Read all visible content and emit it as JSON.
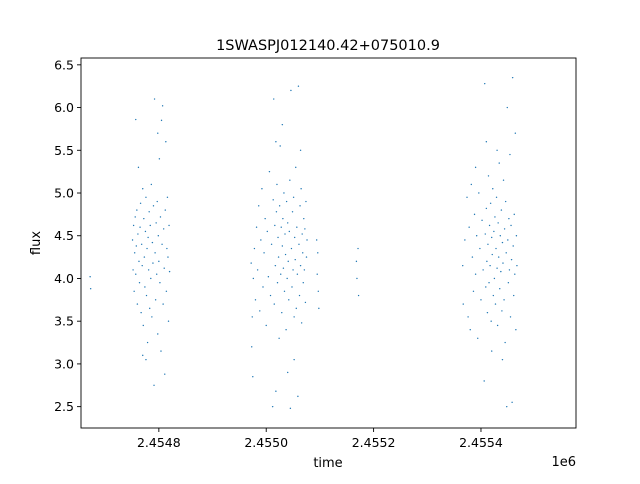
{
  "chart_data": {
    "type": "scatter",
    "title": "1SWASPJ012140.42+075010.9",
    "xlabel": "time",
    "ylabel": "flux",
    "x_offset_label": "1e6",
    "xlim": [
      2454655,
      2455577
    ],
    "ylim": [
      2.25,
      6.58
    ],
    "x_ticks": [
      {
        "value": 2454800,
        "label": "2.4548"
      },
      {
        "value": 2455000,
        "label": "2.4550"
      },
      {
        "value": 2455200,
        "label": "2.4552"
      },
      {
        "value": 2455400,
        "label": "2.4554"
      }
    ],
    "y_ticks": [
      {
        "value": 2.5,
        "label": "2.5"
      },
      {
        "value": 3.0,
        "label": "3.0"
      },
      {
        "value": 3.5,
        "label": "3.5"
      },
      {
        "value": 4.0,
        "label": "4.0"
      },
      {
        "value": 4.5,
        "label": "4.5"
      },
      {
        "value": 5.0,
        "label": "5.0"
      },
      {
        "value": 5.5,
        "label": "5.5"
      },
      {
        "value": 6.0,
        "label": "6.0"
      },
      {
        "value": 6.5,
        "label": "6.5"
      }
    ],
    "grid": false,
    "marker_color": "#1f77b4",
    "series": [
      {
        "points": [
          [
            2454672,
            4.02
          ],
          [
            2454673,
            3.88
          ],
          [
            2454751,
            4.45
          ],
          [
            2454752,
            4.1
          ],
          [
            2454753,
            4.62
          ],
          [
            2454754,
            3.85
          ],
          [
            2454755,
            4.3
          ],
          [
            2454756,
            4.72
          ],
          [
            2454757,
            4.05
          ],
          [
            2454758,
            4.38
          ],
          [
            2454759,
            4.8
          ],
          [
            2454760,
            3.7
          ],
          [
            2454761,
            4.52
          ],
          [
            2454762,
            5.3
          ],
          [
            2454763,
            4.2
          ],
          [
            2454764,
            3.95
          ],
          [
            2454765,
            4.6
          ],
          [
            2454766,
            4.88
          ],
          [
            2454767,
            3.6
          ],
          [
            2454768,
            4.4
          ],
          [
            2454769,
            4.15
          ],
          [
            2454770,
            5.05
          ],
          [
            2454771,
            3.45
          ],
          [
            2454772,
            4.7
          ],
          [
            2454773,
            4.25
          ],
          [
            2454774,
            3.9
          ],
          [
            2454775,
            4.55
          ],
          [
            2454776,
            4.95
          ],
          [
            2454777,
            3.8
          ],
          [
            2454778,
            4.35
          ],
          [
            2454779,
            3.25
          ],
          [
            2454780,
            4.48
          ],
          [
            2454781,
            4.1
          ],
          [
            2454782,
            4.78
          ],
          [
            2454783,
            3.65
          ],
          [
            2454784,
            4.62
          ],
          [
            2454785,
            4.0
          ],
          [
            2454786,
            5.1
          ],
          [
            2454787,
            3.55
          ],
          [
            2454788,
            4.42
          ],
          [
            2454789,
            4.18
          ],
          [
            2454790,
            4.85
          ],
          [
            2454791,
            2.75
          ],
          [
            2454792,
            6.1
          ],
          [
            2454793,
            4.3
          ],
          [
            2454794,
            3.75
          ],
          [
            2454795,
            4.65
          ],
          [
            2454796,
            4.05
          ],
          [
            2454797,
            4.9
          ],
          [
            2454798,
            3.35
          ],
          [
            2454799,
            4.5
          ],
          [
            2454800,
            4.2
          ],
          [
            2454801,
            5.4
          ],
          [
            2454802,
            3.95
          ],
          [
            2454803,
            4.72
          ],
          [
            2454804,
            3.15
          ],
          [
            2454805,
            5.85
          ],
          [
            2454806,
            4.4
          ],
          [
            2454807,
            6.02
          ],
          [
            2454808,
            3.7
          ],
          [
            2454809,
            4.58
          ],
          [
            2454810,
            4.12
          ],
          [
            2454811,
            2.88
          ],
          [
            2454812,
            4.8
          ],
          [
            2454813,
            5.6
          ],
          [
            2454814,
            3.85
          ],
          [
            2454815,
            4.35
          ],
          [
            2454816,
            4.95
          ],
          [
            2454817,
            4.25
          ],
          [
            2454818,
            3.5
          ],
          [
            2454819,
            4.62
          ],
          [
            2454820,
            4.08
          ],
          [
            2454757,
            5.86
          ],
          [
            2454770,
            3.1
          ],
          [
            2454776,
            3.05
          ],
          [
            2454798,
            5.7
          ],
          [
            2454972,
            4.18
          ],
          [
            2454973,
            3.2
          ],
          [
            2454974,
            3.55
          ],
          [
            2454975,
            2.85
          ],
          [
            2454976,
            4.0
          ],
          [
            2454978,
            4.35
          ],
          [
            2454980,
            3.75
          ],
          [
            2454982,
            4.6
          ],
          [
            2454984,
            4.1
          ],
          [
            2454986,
            4.85
          ],
          [
            2454988,
            3.62
          ],
          [
            2454990,
            4.45
          ],
          [
            2454992,
            5.05
          ],
          [
            2454994,
            3.9
          ],
          [
            2454996,
            4.3
          ],
          [
            2454998,
            4.7
          ],
          [
            2455000,
            3.45
          ],
          [
            2455002,
            4.55
          ],
          [
            2455004,
            4.02
          ],
          [
            2455006,
            5.25
          ],
          [
            2455008,
            3.8
          ],
          [
            2455010,
            4.4
          ],
          [
            2455012,
            2.5
          ],
          [
            2455013,
            4.92
          ],
          [
            2455014,
            6.1
          ],
          [
            2455015,
            3.7
          ],
          [
            2455016,
            4.62
          ],
          [
            2455017,
            4.15
          ],
          [
            2455018,
            2.68
          ],
          [
            2455019,
            4.78
          ],
          [
            2455020,
            5.1
          ],
          [
            2455021,
            3.95
          ],
          [
            2455022,
            4.48
          ],
          [
            2455023,
            4.25
          ],
          [
            2455024,
            3.3
          ],
          [
            2455025,
            4.85
          ],
          [
            2455026,
            5.55
          ],
          [
            2455027,
            4.05
          ],
          [
            2455028,
            4.6
          ],
          [
            2455029,
            3.6
          ],
          [
            2455030,
            4.38
          ],
          [
            2455031,
            4.7
          ],
          [
            2455032,
            4.12
          ],
          [
            2455033,
            5.0
          ],
          [
            2455034,
            3.85
          ],
          [
            2455035,
            4.52
          ],
          [
            2455036,
            4.28
          ],
          [
            2455037,
            3.4
          ],
          [
            2455038,
            4.9
          ],
          [
            2455039,
            4.0
          ],
          [
            2455040,
            4.65
          ],
          [
            2455041,
            4.2
          ],
          [
            2455042,
            3.75
          ],
          [
            2455043,
            4.55
          ],
          [
            2455044,
            5.15
          ],
          [
            2455045,
            2.48
          ],
          [
            2455046,
            6.2
          ],
          [
            2455047,
            4.35
          ],
          [
            2455048,
            3.9
          ],
          [
            2455049,
            4.78
          ],
          [
            2455050,
            4.1
          ],
          [
            2455051,
            4.95
          ],
          [
            2455052,
            3.55
          ],
          [
            2455053,
            4.48
          ],
          [
            2455054,
            4.22
          ],
          [
            2455055,
            5.3
          ],
          [
            2455056,
            3.65
          ],
          [
            2455057,
            4.6
          ],
          [
            2455058,
            4.05
          ],
          [
            2455059,
            2.62
          ],
          [
            2455060,
            6.25
          ],
          [
            2455061,
            4.4
          ],
          [
            2455062,
            3.8
          ],
          [
            2455063,
            4.85
          ],
          [
            2455064,
            4.15
          ],
          [
            2455065,
            5.05
          ],
          [
            2455066,
            3.48
          ],
          [
            2455067,
            4.52
          ],
          [
            2455068,
            4.3
          ],
          [
            2455069,
            3.95
          ],
          [
            2455070,
            4.7
          ],
          [
            2455071,
            4.1
          ],
          [
            2455072,
            4.58
          ],
          [
            2455073,
            3.72
          ],
          [
            2455074,
            4.9
          ],
          [
            2455075,
            4.25
          ],
          [
            2455076,
            4.45
          ],
          [
            2455018,
            5.6
          ],
          [
            2455030,
            5.8
          ],
          [
            2455040,
            2.9
          ],
          [
            2455064,
            5.5
          ],
          [
            2455052,
            3.05
          ],
          [
            2455094,
            4.45
          ],
          [
            2455095,
            4.05
          ],
          [
            2455096,
            4.3
          ],
          [
            2455097,
            3.85
          ],
          [
            2455098,
            3.65
          ],
          [
            2455168,
            4.2
          ],
          [
            2455169,
            4.0
          ],
          [
            2455171,
            4.35
          ],
          [
            2455172,
            3.8
          ],
          [
            2455366,
            4.15
          ],
          [
            2455367,
            3.7
          ],
          [
            2455370,
            4.45
          ],
          [
            2455374,
            4.95
          ],
          [
            2455376,
            3.55
          ],
          [
            2455378,
            4.6
          ],
          [
            2455380,
            3.4
          ],
          [
            2455382,
            5.1
          ],
          [
            2455384,
            4.25
          ],
          [
            2455386,
            3.85
          ],
          [
            2455388,
            4.75
          ],
          [
            2455390,
            4.05
          ],
          [
            2455392,
            4.5
          ],
          [
            2455394,
            3.3
          ],
          [
            2455396,
            5.0
          ],
          [
            2455398,
            4.35
          ],
          [
            2455400,
            3.75
          ],
          [
            2455402,
            4.68
          ],
          [
            2455404,
            4.1
          ],
          [
            2455406,
            2.8
          ],
          [
            2455407,
            6.28
          ],
          [
            2455408,
            4.52
          ],
          [
            2455409,
            3.9
          ],
          [
            2455410,
            4.82
          ],
          [
            2455411,
            4.2
          ],
          [
            2455412,
            3.6
          ],
          [
            2455413,
            4.4
          ],
          [
            2455414,
            5.2
          ],
          [
            2455415,
            3.95
          ],
          [
            2455416,
            4.62
          ],
          [
            2455417,
            4.15
          ],
          [
            2455418,
            4.88
          ],
          [
            2455419,
            3.5
          ],
          [
            2455420,
            4.48
          ],
          [
            2455421,
            4.28
          ],
          [
            2455422,
            5.05
          ],
          [
            2455423,
            3.8
          ],
          [
            2455424,
            4.55
          ],
          [
            2455425,
            4.0
          ],
          [
            2455426,
            4.72
          ],
          [
            2455427,
            3.7
          ],
          [
            2455428,
            4.35
          ],
          [
            2455429,
            4.95
          ],
          [
            2455430,
            4.12
          ],
          [
            2455431,
            3.45
          ],
          [
            2455432,
            4.65
          ],
          [
            2455433,
            4.25
          ],
          [
            2455434,
            5.35
          ],
          [
            2455435,
            3.88
          ],
          [
            2455436,
            4.5
          ],
          [
            2455437,
            4.08
          ],
          [
            2455438,
            4.8
          ],
          [
            2455439,
            3.62
          ],
          [
            2455440,
            4.42
          ],
          [
            2455441,
            4.18
          ],
          [
            2455442,
            5.15
          ],
          [
            2455443,
            3.75
          ],
          [
            2455444,
            4.58
          ],
          [
            2455445,
            3.25
          ],
          [
            2455446,
            4.9
          ],
          [
            2455447,
            4.3
          ],
          [
            2455448,
            2.5
          ],
          [
            2455449,
            6.0
          ],
          [
            2455450,
            4.45
          ],
          [
            2455451,
            3.95
          ],
          [
            2455452,
            4.7
          ],
          [
            2455453,
            4.1
          ],
          [
            2455454,
            5.45
          ],
          [
            2455455,
            3.55
          ],
          [
            2455456,
            4.62
          ],
          [
            2455457,
            4.22
          ],
          [
            2455458,
            2.55
          ],
          [
            2455459,
            6.35
          ],
          [
            2455460,
            4.38
          ],
          [
            2455461,
            3.8
          ],
          [
            2455462,
            4.75
          ],
          [
            2455463,
            4.05
          ],
          [
            2455464,
            5.7
          ],
          [
            2455465,
            3.4
          ],
          [
            2455466,
            4.5
          ],
          [
            2455467,
            4.15
          ],
          [
            2455390,
            5.3
          ],
          [
            2455410,
            5.6
          ],
          [
            2455420,
            3.15
          ],
          [
            2455440,
            3.05
          ],
          [
            2455430,
            5.5
          ]
        ]
      }
    ]
  }
}
